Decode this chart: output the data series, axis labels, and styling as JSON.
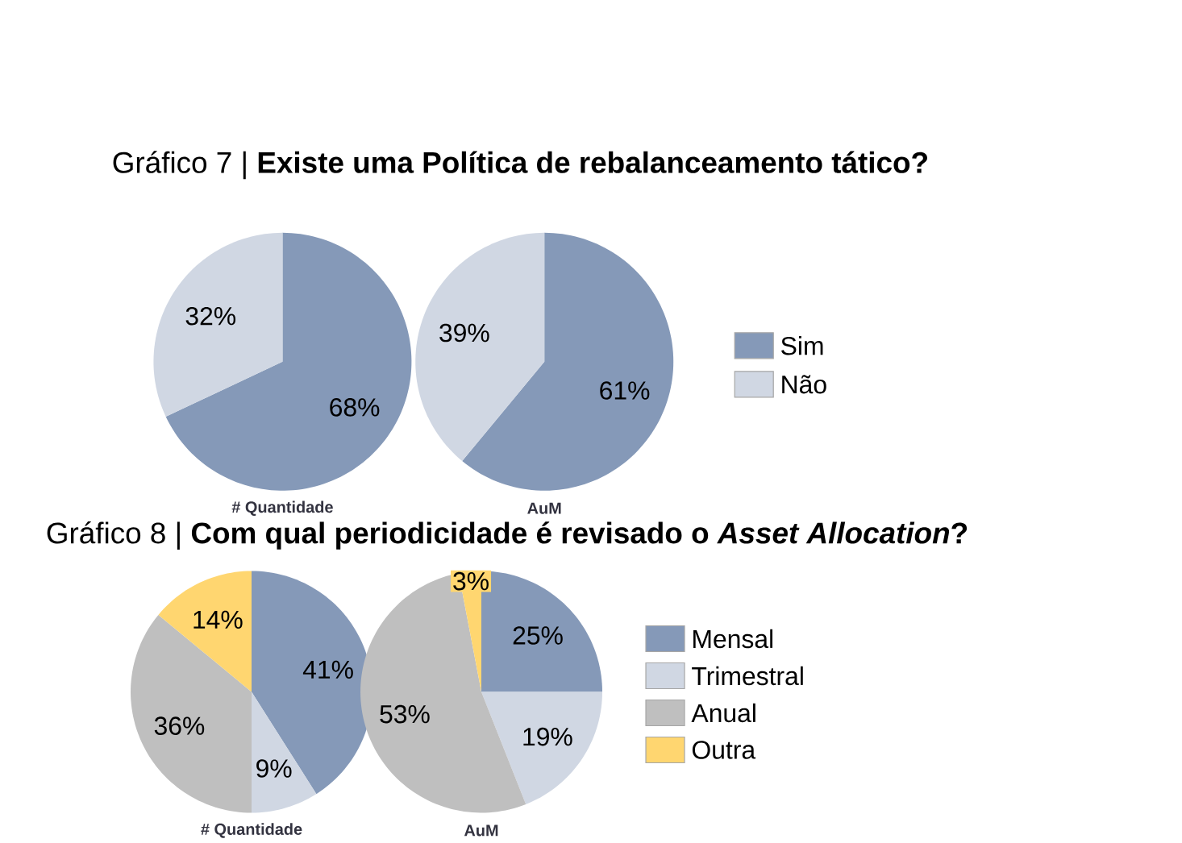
{
  "chart_data": [
    {
      "type": "pie",
      "title": "Gráfico 7 | **Existe uma Política de rebalanceamento tático?**",
      "xlabel": "# Quantidade",
      "categories": [
        null,
        null
      ],
      "values": [
        68,
        32
      ],
      "colors": [
        "#8599b8",
        "#d0d7e3"
      ],
      "value_labels": [
        "68%",
        "32%"
      ]
    },
    {
      "type": "pie",
      "xlabel": "AuM",
      "categories": [
        "Sim",
        "Não"
      ],
      "values": [
        61,
        39
      ],
      "colors": [
        "#8599b8",
        "#d0d7e3"
      ],
      "value_labels": [
        "61%",
        "39%"
      ],
      "legend": "right"
    },
    {
      "type": "pie",
      "title": "Gráfico 8 | **Com qual periodicidade é revisado o *Asset Allocation*?**",
      "xlabel": "# Quantidade",
      "categories": [
        null,
        null,
        null,
        null
      ],
      "values": [
        41,
        9,
        36,
        14
      ],
      "colors": [
        "#8599b8",
        "#d0d7e3",
        "#bfbfbf",
        "#ffd670"
      ],
      "value_labels": [
        "41%",
        "9%",
        "36%",
        "14%"
      ]
    },
    {
      "type": "pie",
      "xlabel": "AuM",
      "categories": [
        "Mensal",
        "Trimestral",
        "Anual",
        "Outra"
      ],
      "values": [
        25,
        19,
        53,
        3
      ],
      "colors": [
        "#8599b8",
        "#d0d7e3",
        "#bfbfbf",
        "#ffd670"
      ],
      "value_labels": [
        "25%",
        "19%",
        "53%",
        "3%"
      ],
      "legend": "right"
    }
  ]
}
